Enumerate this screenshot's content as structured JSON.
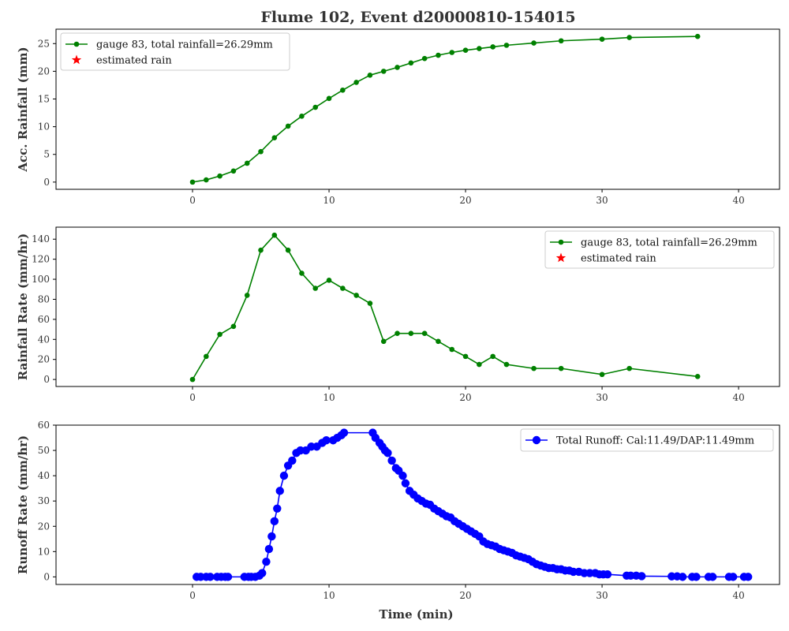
{
  "title": "Flume 102, Event d20000810-154015",
  "colors": {
    "gauge": "#008000",
    "estimated": "#ff0000",
    "runoff": "#0000ff"
  },
  "chart_data": [
    {
      "type": "line",
      "ylabel": "Acc. Rainfall (mm)",
      "xlabel": "",
      "xlim": [
        -10,
        43
      ],
      "ylim": [
        -1.3,
        27.6
      ],
      "xticks": [
        0,
        10,
        20,
        30,
        40
      ],
      "yticks": [
        0,
        5,
        10,
        15,
        20,
        25
      ],
      "legend_position": "upper-left",
      "series": [
        {
          "name": "gauge 83, total rainfall=26.29mm",
          "marker": "circle",
          "x": [
            0,
            1,
            2,
            3,
            4,
            5,
            6,
            7,
            8,
            9,
            10,
            11,
            12,
            13,
            14,
            15,
            16,
            17,
            18,
            19,
            20,
            21,
            22,
            23,
            25,
            27,
            30,
            32,
            37
          ],
          "y": [
            0,
            0.4,
            1.1,
            2.0,
            3.4,
            5.5,
            8.0,
            10.1,
            11.9,
            13.5,
            15.1,
            16.6,
            18.0,
            19.3,
            20.0,
            20.7,
            21.5,
            22.3,
            22.9,
            23.4,
            23.8,
            24.1,
            24.4,
            24.7,
            25.1,
            25.5,
            25.8,
            26.1,
            26.29
          ]
        },
        {
          "name": "estimated rain",
          "marker": "star",
          "x": [],
          "y": []
        }
      ]
    },
    {
      "type": "line",
      "ylabel": "Rainfall Rate (mm/hr)",
      "xlabel": "",
      "xlim": [
        -10,
        43
      ],
      "ylim": [
        -7,
        152
      ],
      "xticks": [
        0,
        10,
        20,
        30,
        40
      ],
      "yticks": [
        0,
        20,
        40,
        60,
        80,
        100,
        120,
        140
      ],
      "legend_position": "upper-right",
      "series": [
        {
          "name": "gauge 83, total rainfall=26.29mm",
          "marker": "circle",
          "x": [
            0,
            1,
            2,
            3,
            4,
            5,
            6,
            7,
            8,
            9,
            10,
            11,
            12,
            13,
            14,
            15,
            16,
            17,
            18,
            19,
            20,
            21,
            22,
            23,
            25,
            27,
            30,
            32,
            37
          ],
          "y": [
            0,
            23,
            45,
            53,
            84,
            129,
            144,
            129,
            106,
            91,
            99,
            91,
            84,
            76,
            38,
            46,
            46,
            46,
            38,
            30,
            23,
            15,
            23,
            15,
            11,
            11,
            5,
            11,
            3
          ]
        },
        {
          "name": "estimated rain",
          "marker": "star",
          "x": [],
          "y": []
        }
      ]
    },
    {
      "type": "line",
      "ylabel": "Runoff Rate (mm/hr)",
      "xlabel": "Time (min)",
      "xlim": [
        -10,
        43
      ],
      "ylim": [
        -3,
        60
      ],
      "xticks": [
        0,
        10,
        20,
        30,
        40
      ],
      "yticks": [
        0,
        10,
        20,
        30,
        40,
        50,
        60
      ],
      "legend_position": "upper-right",
      "series": [
        {
          "name": "Total Runoff: Cal:11.49/DAP:11.49mm",
          "marker": "circle",
          "x": [
            0.3,
            0.6,
            1.0,
            1.3,
            1.8,
            2.1,
            2.4,
            2.6,
            3.8,
            4.1,
            4.3,
            4.6,
            4.9,
            5.1,
            5.4,
            5.6,
            5.8,
            6.0,
            6.2,
            6.4,
            6.7,
            7.0,
            7.3,
            7.6,
            7.9,
            8.3,
            8.7,
            9.1,
            9.5,
            9.8,
            10.3,
            10.6,
            10.9,
            11.1,
            13.2,
            13.4,
            13.7,
            13.9,
            14.1,
            14.3,
            14.6,
            14.9,
            15.1,
            15.4,
            15.6,
            15.9,
            16.2,
            16.5,
            16.8,
            17.1,
            17.4,
            17.7,
            18.0,
            18.3,
            18.6,
            18.9,
            19.2,
            19.5,
            19.8,
            20.1,
            20.4,
            20.7,
            21.0,
            21.3,
            21.6,
            21.9,
            22.2,
            22.5,
            22.8,
            23.1,
            23.4,
            23.7,
            24.0,
            24.3,
            24.6,
            24.9,
            25.2,
            25.5,
            25.8,
            26.1,
            26.4,
            26.7,
            27.0,
            27.3,
            27.6,
            27.9,
            28.3,
            28.7,
            29.1,
            29.5,
            29.8,
            30.1,
            30.4,
            31.8,
            32.1,
            32.5,
            32.9,
            35.1,
            35.5,
            35.9,
            36.6,
            36.9,
            37.8,
            38.1,
            39.3,
            39.6,
            40.4,
            40.7
          ],
          "y": [
            0,
            0,
            0,
            0,
            0,
            0,
            0,
            0,
            0,
            0,
            0,
            0,
            0.5,
            1.5,
            6,
            11,
            16,
            22,
            27,
            34,
            40,
            44,
            46,
            49,
            50,
            50,
            51.5,
            51.5,
            53,
            54,
            54,
            55,
            56,
            57,
            57,
            55,
            53,
            51.5,
            50,
            49,
            46,
            43,
            42,
            40,
            37,
            34,
            32.5,
            31,
            30,
            29,
            28.5,
            27,
            26,
            25,
            24,
            23.5,
            22,
            21,
            20,
            19,
            18,
            17,
            16,
            14,
            13,
            12.5,
            12,
            11,
            10.5,
            10,
            9.5,
            8.5,
            8,
            7.5,
            7,
            6,
            5,
            4.5,
            4,
            3.5,
            3.5,
            3,
            3,
            2.5,
            2.5,
            2,
            2,
            1.5,
            1.5,
            1.5,
            1,
            1,
            1,
            0.5,
            0.5,
            0.5,
            0.3,
            0.2,
            0.2,
            0,
            0,
            0,
            0,
            0,
            0,
            0,
            0,
            0
          ]
        }
      ]
    }
  ]
}
